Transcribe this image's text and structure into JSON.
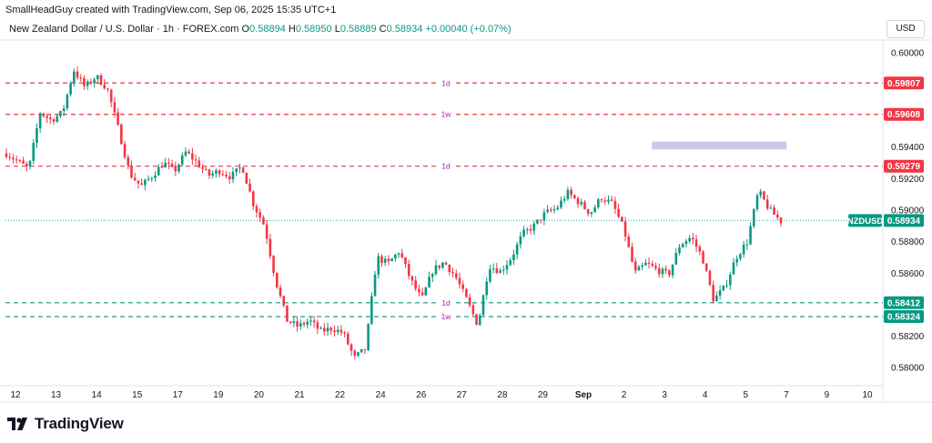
{
  "header": {
    "credit": "SmallHeadGuy created with TradingView.com, Sep 06, 2025 15:35 UTC+1",
    "symbol_line": "New Zealand Dollar / U.S. Dollar · 1h · FOREX.com",
    "open_label": "O",
    "open": "0.58894",
    "high_label": "H",
    "high": "0.58950",
    "low_label": "L",
    "low": "0.58889",
    "close_label": "C",
    "close": "0.58934",
    "change": "+0.00040 (+0.07%)",
    "currency": "USD"
  },
  "colors": {
    "up": "#089981",
    "down": "#f23645",
    "resistance": "#f23645",
    "support": "#089981",
    "zone": "#d1c4e9",
    "level_label": "#9c27b0"
  },
  "chart_data": {
    "type": "candlestick",
    "symbol": "NZDUSD",
    "current_price": 0.58934,
    "ylim": [
      0.5792,
      0.6008
    ],
    "y_ticks": [
      0.6,
      0.594,
      0.592,
      0.59,
      0.588,
      0.586,
      0.582,
      0.58
    ],
    "x_ticks": [
      "12",
      "13",
      "14",
      "15",
      "17",
      "19",
      "20",
      "21",
      "22",
      "24",
      "26",
      "27",
      "28",
      "29",
      "Sep",
      "2",
      "3",
      "4",
      "5",
      "7",
      "9",
      "10"
    ],
    "price_path": [
      [
        0,
        0.5936
      ],
      [
        1,
        0.5931
      ],
      [
        2,
        0.5926
      ],
      [
        3,
        0.5962
      ],
      [
        4,
        0.5957
      ],
      [
        5,
        0.5962
      ],
      [
        6,
        0.5989
      ],
      [
        7,
        0.5978
      ],
      [
        8,
        0.5985
      ],
      [
        9,
        0.5977
      ],
      [
        10,
        0.5951
      ],
      [
        11,
        0.5923
      ],
      [
        12,
        0.5915
      ],
      [
        13,
        0.5922
      ],
      [
        14,
        0.593
      ],
      [
        15,
        0.5925
      ],
      [
        16,
        0.5937
      ],
      [
        17,
        0.593
      ],
      [
        18,
        0.5922
      ],
      [
        19,
        0.5925
      ],
      [
        20,
        0.5921
      ],
      [
        21,
        0.5928
      ],
      [
        22,
        0.5904
      ],
      [
        23,
        0.589
      ],
      [
        24,
        0.5855
      ],
      [
        25,
        0.583
      ],
      [
        26,
        0.5826
      ],
      [
        27,
        0.583
      ],
      [
        28,
        0.5823
      ],
      [
        29,
        0.5825
      ],
      [
        30,
        0.5822
      ],
      [
        31,
        0.5806
      ],
      [
        32,
        0.5812
      ],
      [
        33,
        0.587
      ],
      [
        34,
        0.5866
      ],
      [
        35,
        0.5874
      ],
      [
        36,
        0.5856
      ],
      [
        37,
        0.5843
      ],
      [
        38,
        0.5862
      ],
      [
        39,
        0.5867
      ],
      [
        40,
        0.5858
      ],
      [
        41,
        0.5843
      ],
      [
        42,
        0.5827
      ],
      [
        43,
        0.5865
      ],
      [
        44,
        0.5861
      ],
      [
        45,
        0.587
      ],
      [
        46,
        0.5885
      ],
      [
        47,
        0.589
      ],
      [
        48,
        0.5898
      ],
      [
        49,
        0.5901
      ],
      [
        50,
        0.5911
      ],
      [
        51,
        0.5905
      ],
      [
        52,
        0.5898
      ],
      [
        53,
        0.5908
      ],
      [
        54,
        0.5904
      ],
      [
        55,
        0.5888
      ],
      [
        56,
        0.586
      ],
      [
        57,
        0.5866
      ],
      [
        58,
        0.5862
      ],
      [
        59,
        0.5859
      ],
      [
        60,
        0.5878
      ],
      [
        61,
        0.5883
      ],
      [
        62,
        0.587
      ],
      [
        63,
        0.5843
      ],
      [
        64,
        0.5851
      ],
      [
        65,
        0.587
      ],
      [
        66,
        0.588
      ],
      [
        67,
        0.5912
      ],
      [
        68,
        0.59
      ],
      [
        69,
        0.5893
      ]
    ],
    "horizontal_levels": [
      {
        "price": 0.59807,
        "label": "0.59807",
        "tag": "1d",
        "kind": "resistance"
      },
      {
        "price": 0.59608,
        "label": "0.59608",
        "tag": "1w",
        "kind": "resistance"
      },
      {
        "price": 0.59279,
        "label": "0.59279",
        "tag": "1d",
        "kind": "resistance"
      },
      {
        "price": 0.58412,
        "label": "0.58412",
        "tag": "1d",
        "kind": "support"
      },
      {
        "price": 0.58324,
        "label": "0.58324",
        "tag": "1w",
        "kind": "support"
      }
    ],
    "zone": {
      "price_top": 0.59435,
      "price_bottom": 0.59385,
      "start_index": 57.5,
      "end_index": 69.5
    },
    "current_label": "NZDUSD",
    "current_value": "0.58934"
  },
  "footer": {
    "brand": "TradingView"
  }
}
